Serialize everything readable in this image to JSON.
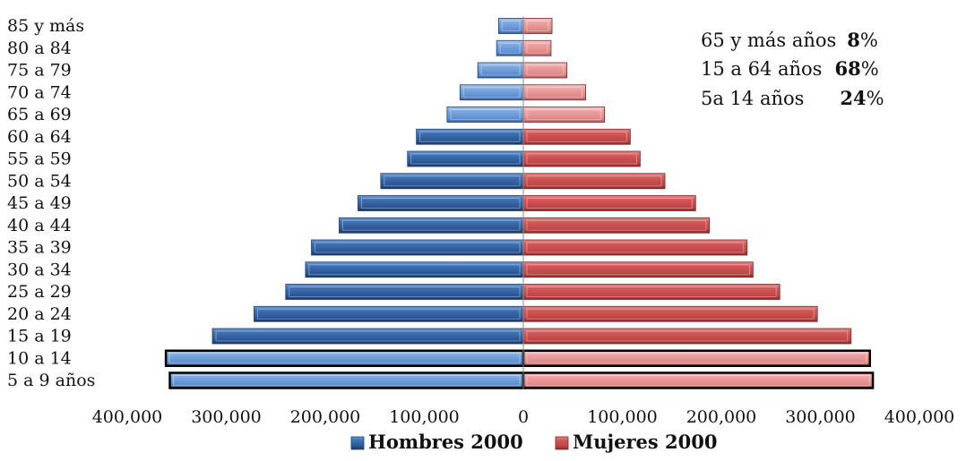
{
  "chart_data": {
    "type": "bar",
    "orientation": "horizontal",
    "subtype": "population-pyramid",
    "categories": [
      "5 a 9 años",
      "10 a 14",
      "15 a 19",
      "20 a 24",
      "25 a 29",
      "30 a 34",
      "35 a 39",
      "40 a 44",
      "45 a 49",
      "50 a 54",
      "55 a 59",
      "60 a 64",
      "65 a 69",
      "70 a 74",
      "75 a 79",
      "80 a 84",
      "85 y más"
    ],
    "series": [
      {
        "name": "Hombres 2000",
        "color": "#2f5f9f",
        "values": [
          357000,
          361000,
          314000,
          272000,
          240000,
          220000,
          214000,
          186000,
          167000,
          144000,
          117000,
          108000,
          77000,
          64000,
          46000,
          27000,
          25000
        ]
      },
      {
        "name": "Mujeres 2000",
        "color": "#c94a4a",
        "values": [
          353000,
          350000,
          331000,
          297000,
          259000,
          232000,
          226000,
          188000,
          174000,
          143000,
          118000,
          108000,
          82000,
          63000,
          44000,
          28000,
          29000
        ]
      }
    ],
    "highlighted_categories": [
      "5 a 9 años",
      "10 a 14"
    ],
    "x_ticks": [
      -400000,
      -300000,
      -200000,
      -100000,
      0,
      100000,
      200000,
      300000,
      400000
    ],
    "x_tick_labels": [
      "400,000",
      "300,000",
      "200,000",
      "100,000",
      "0",
      "100,000",
      "200,000",
      "300,000",
      "400,000"
    ],
    "xlim": [
      -400000,
      400000
    ],
    "grid": false,
    "legend_position": "bottom",
    "title": "",
    "xlabel": "",
    "ylabel": ""
  },
  "annotations": [
    {
      "label": "65 y más años",
      "value": "8",
      "suffix": "%"
    },
    {
      "label": "15 a 64 años",
      "value": "68",
      "suffix": "%"
    },
    {
      "label": "5a 14 años",
      "value": "24",
      "suffix": "%"
    }
  ]
}
